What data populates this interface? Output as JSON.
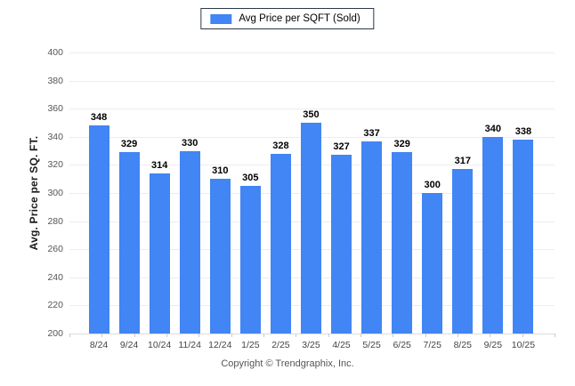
{
  "legend": {
    "label": "Avg Price per SQFT (Sold)",
    "swatch_color": "#4285f4"
  },
  "footer": {
    "copyright": "Copyright © Trendgraphix, Inc."
  },
  "colors": {
    "bar": "#4285f4",
    "gridline": "#ededed",
    "baseline": "#dcdcdc",
    "axis_text": "#555555",
    "value_label": "#000000",
    "legend_border": "#2b3948"
  },
  "chart_data": {
    "type": "bar",
    "title": "",
    "series_name": "Avg Price per SQFT (Sold)",
    "categories": [
      "8/24",
      "9/24",
      "10/24",
      "11/24",
      "12/24",
      "1/25",
      "2/25",
      "3/25",
      "4/25",
      "5/25",
      "6/25",
      "7/25",
      "8/25",
      "9/25",
      "10/25"
    ],
    "values": [
      348,
      329,
      314,
      330,
      310,
      305,
      328,
      350,
      327,
      337,
      329,
      300,
      317,
      340,
      338
    ],
    "value_labels": true,
    "xlabel": "",
    "ylabel": "Avg. Price per SQ. FT.",
    "ylim": [
      200,
      400
    ],
    "yticks": [
      200,
      220,
      240,
      260,
      280,
      300,
      320,
      340,
      360,
      380,
      400
    ],
    "grid": "horizontal",
    "legend_position": "top-center",
    "bar_color": "#4285f4"
  }
}
